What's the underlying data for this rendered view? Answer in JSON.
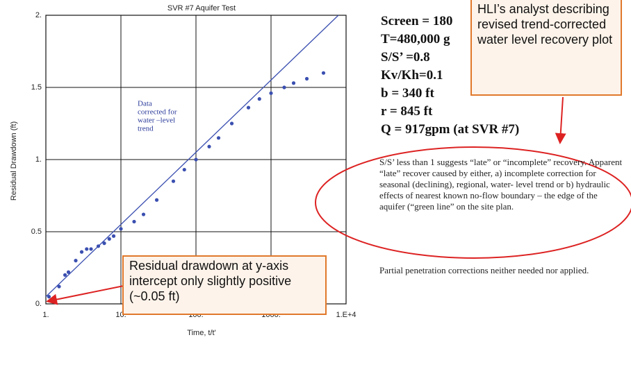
{
  "chart_data": {
    "type": "scatter",
    "title": "SVR #7 Aquifer Test",
    "x_label": "Time, t/t'",
    "y_label": "Residual Drawdown (ft)",
    "xlog": true,
    "grid": true,
    "xlim": [
      1,
      10000
    ],
    "ylim": [
      0,
      2
    ],
    "xticks": [
      {
        "value": 1,
        "label": "1."
      },
      {
        "value": 10,
        "label": "10."
      },
      {
        "value": 100,
        "label": "100."
      },
      {
        "value": 1000,
        "label": "1000."
      },
      {
        "value": 10000,
        "label": "1.E+4"
      }
    ],
    "yticks": [
      {
        "value": 0,
        "label": "0."
      },
      {
        "value": 0.5,
        "label": "0.5"
      },
      {
        "value": 1,
        "label": "1."
      },
      {
        "value": 1.5,
        "label": "1.5"
      },
      {
        "value": 2,
        "label": "2."
      }
    ],
    "points": {
      "color": "#3a4fb0",
      "x": [
        1.1,
        1.5,
        1.8,
        2,
        2.5,
        3,
        3.5,
        4,
        5,
        6,
        7,
        8,
        10,
        15,
        20,
        30,
        50,
        70,
        100,
        150,
        200,
        300,
        500,
        700,
        1000,
        1500,
        2000,
        3000,
        5000
      ],
      "values": [
        0.05,
        0.12,
        0.2,
        0.22,
        0.3,
        0.36,
        0.38,
        0.38,
        0.4,
        0.42,
        0.45,
        0.47,
        0.52,
        0.57,
        0.62,
        0.72,
        0.85,
        0.93,
        1.0,
        1.09,
        1.15,
        1.25,
        1.36,
        1.42,
        1.46,
        1.5,
        1.53,
        1.56,
        1.6
      ]
    },
    "fit_line": {
      "color": "#3a4fb0",
      "x": [
        1,
        7900
      ],
      "values": [
        0.05,
        2.0
      ]
    },
    "plot_note": [
      "Data",
      "corrected for",
      "water –level",
      "trend"
    ]
  },
  "params": [
    "Screen = 180",
    "T=480,000 g",
    "S/S’ =0.8",
    "Kv/Kh=0.1",
    "b = 340 ft",
    "r = 845 ft",
    "Q = 917gpm (at SVR #7)"
  ],
  "paragraph": "S/S’ less than 1 suggests “late” or “incomplete” recovery. Apparent “late” recover caused by either, a) incomplete correction for seasonal (declining), regional, water- level trend  or b) hydraulic effects of nearest known no-flow boundary – the edge of the aquifer (“green line” on the site plan.",
  "paragraph2": "Partial penetration corrections neither needed nor applied.",
  "callout_top": "HLI’s analyst describing revised trend-corrected water level recovery plot",
  "callout_bottom": "Residual drawdown at y-axis intercept only slightly positive (~0.05 ft)"
}
